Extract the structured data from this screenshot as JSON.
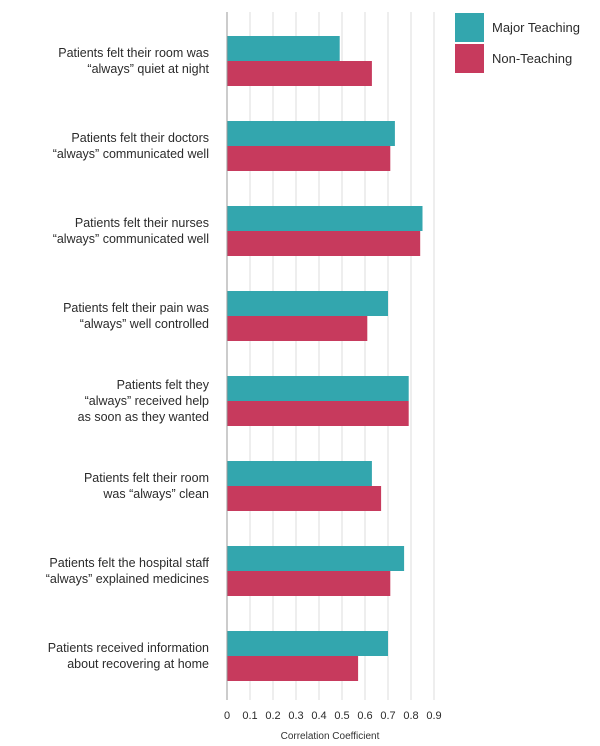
{
  "chart_data": {
    "type": "bar",
    "orientation": "horizontal",
    "categories": [
      [
        "Patients felt their room was",
        "“always” quiet at night"
      ],
      [
        "Patients felt their doctors",
        "“always” communicated well"
      ],
      [
        "Patients felt their nurses",
        "“always” communicated well"
      ],
      [
        "Patients felt their pain was",
        "“always” well controlled"
      ],
      [
        "Patients felt they",
        "“always” received help",
        "as soon as they wanted"
      ],
      [
        "Patients felt their room",
        "was “always” clean"
      ],
      [
        "Patients felt the hospital staff",
        "“always” explained medicines"
      ],
      [
        "Patients received information",
        "about recovering at home"
      ]
    ],
    "series": [
      {
        "name": "Major Teaching",
        "color": "#33a6ae",
        "values": [
          0.49,
          0.73,
          0.85,
          0.7,
          0.79,
          0.63,
          0.77,
          0.7
        ]
      },
      {
        "name": "Non-Teaching",
        "color": "#c73a5d",
        "values": [
          0.63,
          0.71,
          0.84,
          0.61,
          0.79,
          0.67,
          0.71,
          0.57
        ]
      }
    ],
    "xlabel": "Correlation Coefficient",
    "ylabel": "",
    "title": "",
    "xlim": [
      0,
      0.9
    ],
    "xticks": [
      "0",
      "0.1",
      "0.2",
      "0.3",
      "0.4",
      "0.5",
      "0.6",
      "0.7",
      "0.8",
      "0.9"
    ],
    "grid": true,
    "legend_position": "top-right"
  }
}
